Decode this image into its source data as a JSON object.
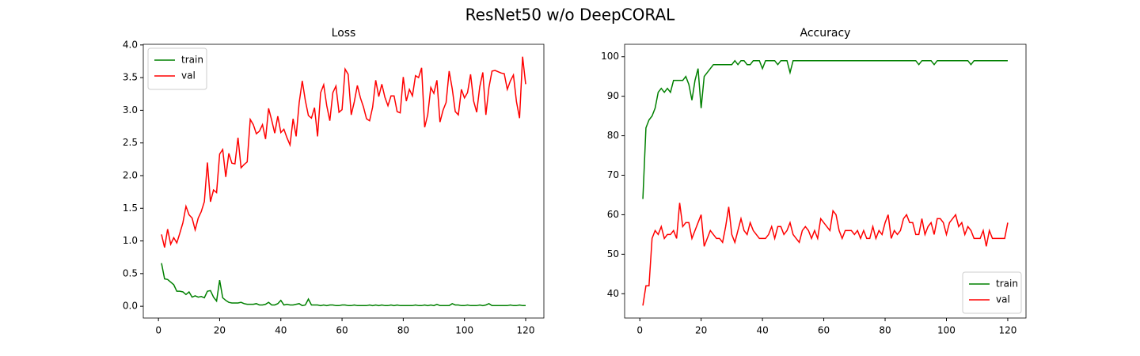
{
  "title": "ResNet50 w/o DeepCORAL",
  "chart_data": [
    {
      "type": "line",
      "title": "Loss",
      "x": [
        1,
        2,
        3,
        4,
        5,
        6,
        7,
        8,
        9,
        10,
        11,
        12,
        13,
        14,
        15,
        16,
        17,
        18,
        19,
        20,
        21,
        22,
        23,
        24,
        25,
        26,
        27,
        28,
        29,
        30,
        31,
        32,
        33,
        34,
        35,
        36,
        37,
        38,
        39,
        40,
        41,
        42,
        43,
        44,
        45,
        46,
        47,
        48,
        49,
        50,
        51,
        52,
        53,
        54,
        55,
        56,
        57,
        58,
        59,
        60,
        61,
        62,
        63,
        64,
        65,
        66,
        67,
        68,
        69,
        70,
        71,
        72,
        73,
        74,
        75,
        76,
        77,
        78,
        79,
        80,
        81,
        82,
        83,
        84,
        85,
        86,
        87,
        88,
        89,
        90,
        91,
        92,
        93,
        94,
        95,
        96,
        97,
        98,
        99,
        100,
        101,
        102,
        103,
        104,
        105,
        106,
        107,
        108,
        109,
        110,
        111,
        112,
        113,
        114,
        115,
        116,
        117,
        118,
        119,
        120
      ],
      "series": [
        {
          "name": "train",
          "color": "#008000",
          "values": [
            0.66,
            0.42,
            0.41,
            0.37,
            0.33,
            0.23,
            0.23,
            0.22,
            0.18,
            0.22,
            0.14,
            0.16,
            0.14,
            0.15,
            0.13,
            0.23,
            0.24,
            0.14,
            0.08,
            0.4,
            0.13,
            0.09,
            0.06,
            0.05,
            0.05,
            0.05,
            0.06,
            0.04,
            0.03,
            0.03,
            0.03,
            0.04,
            0.02,
            0.02,
            0.03,
            0.06,
            0.02,
            0.02,
            0.04,
            0.09,
            0.02,
            0.03,
            0.02,
            0.02,
            0.03,
            0.04,
            0.01,
            0.02,
            0.11,
            0.02,
            0.02,
            0.02,
            0.01,
            0.02,
            0.01,
            0.02,
            0.02,
            0.01,
            0.01,
            0.02,
            0.02,
            0.01,
            0.01,
            0.02,
            0.01,
            0.01,
            0.01,
            0.01,
            0.02,
            0.01,
            0.02,
            0.01,
            0.02,
            0.01,
            0.01,
            0.02,
            0.01,
            0.02,
            0.01,
            0.01,
            0.01,
            0.01,
            0.01,
            0.02,
            0.01,
            0.01,
            0.02,
            0.01,
            0.02,
            0.01,
            0.03,
            0.01,
            0.01,
            0.01,
            0.01,
            0.04,
            0.02,
            0.02,
            0.01,
            0.01,
            0.02,
            0.01,
            0.01,
            0.01,
            0.02,
            0.01,
            0.02,
            0.04,
            0.01,
            0.01,
            0.01,
            0.01,
            0.01,
            0.01,
            0.02,
            0.01,
            0.01,
            0.02,
            0.01,
            0.01
          ]
        },
        {
          "name": "val",
          "color": "#ff0000",
          "values": [
            1.1,
            0.9,
            1.18,
            0.95,
            1.05,
            0.97,
            1.12,
            1.28,
            1.53,
            1.4,
            1.35,
            1.17,
            1.35,
            1.45,
            1.6,
            2.2,
            1.6,
            1.78,
            1.74,
            2.33,
            2.4,
            1.98,
            2.34,
            2.19,
            2.18,
            2.58,
            2.12,
            2.17,
            2.21,
            2.86,
            2.78,
            2.64,
            2.68,
            2.78,
            2.56,
            3.03,
            2.85,
            2.65,
            2.91,
            2.66,
            2.71,
            2.58,
            2.47,
            2.87,
            2.6,
            3.12,
            3.45,
            3.15,
            2.92,
            2.88,
            3.04,
            2.6,
            3.27,
            3.39,
            3.07,
            2.84,
            3.27,
            3.37,
            2.97,
            3.01,
            3.63,
            3.55,
            2.93,
            3.13,
            3.38,
            3.19,
            3.05,
            2.87,
            2.84,
            3.05,
            3.46,
            3.21,
            3.4,
            3.2,
            3.07,
            3.22,
            3.22,
            2.98,
            2.96,
            3.51,
            3.14,
            3.32,
            3.22,
            3.53,
            3.5,
            3.65,
            2.74,
            2.93,
            3.35,
            3.26,
            3.46,
            2.82,
            3.0,
            3.12,
            3.6,
            3.33,
            2.98,
            2.93,
            3.32,
            3.19,
            3.27,
            3.55,
            3.14,
            2.97,
            3.36,
            3.58,
            2.93,
            3.35,
            3.6,
            3.61,
            3.59,
            3.57,
            3.56,
            3.32,
            3.45,
            3.54,
            3.13,
            2.88,
            3.82,
            3.4
          ]
        }
      ],
      "xlim": [
        -4.95,
        125.95
      ],
      "ylim": [
        -0.18,
        4.01
      ],
      "xticks": [
        0,
        20,
        40,
        60,
        80,
        100,
        120
      ],
      "yticks": [
        {
          "value": 0,
          "label": "0.0"
        },
        0.5,
        {
          "value": 1,
          "label": "1.0"
        },
        1.5,
        {
          "value": 2,
          "label": "2.0"
        },
        2.5,
        {
          "value": 3,
          "label": "3.0"
        },
        3.5,
        {
          "value": 4,
          "label": "4.0"
        }
      ],
      "legend": "upper left",
      "grid": false
    },
    {
      "type": "line",
      "title": "Accuracy",
      "x": [
        1,
        2,
        3,
        4,
        5,
        6,
        7,
        8,
        9,
        10,
        11,
        12,
        13,
        14,
        15,
        16,
        17,
        18,
        19,
        20,
        21,
        22,
        23,
        24,
        25,
        26,
        27,
        28,
        29,
        30,
        31,
        32,
        33,
        34,
        35,
        36,
        37,
        38,
        39,
        40,
        41,
        42,
        43,
        44,
        45,
        46,
        47,
        48,
        49,
        50,
        51,
        52,
        53,
        54,
        55,
        56,
        57,
        58,
        59,
        60,
        61,
        62,
        63,
        64,
        65,
        66,
        67,
        68,
        69,
        70,
        71,
        72,
        73,
        74,
        75,
        76,
        77,
        78,
        79,
        80,
        81,
        82,
        83,
        84,
        85,
        86,
        87,
        88,
        89,
        90,
        91,
        92,
        93,
        94,
        95,
        96,
        97,
        98,
        99,
        100,
        101,
        102,
        103,
        104,
        105,
        106,
        107,
        108,
        109,
        110,
        111,
        112,
        113,
        114,
        115,
        116,
        117,
        118,
        119,
        120
      ],
      "series": [
        {
          "name": "train",
          "color": "#008000",
          "values": [
            64,
            82,
            84,
            85,
            87,
            91,
            92,
            91,
            92,
            91,
            94,
            94,
            94,
            94,
            95,
            93,
            89,
            94,
            97,
            87,
            95,
            96,
            97,
            98,
            98,
            98,
            98,
            98,
            98,
            98,
            99,
            98,
            99,
            99,
            98,
            98,
            99,
            99,
            99,
            97,
            99,
            99,
            99,
            99,
            98,
            99,
            99,
            99,
            96,
            99,
            99,
            99,
            99,
            99,
            99,
            99,
            99,
            99,
            99,
            99,
            99,
            99,
            99,
            99,
            99,
            99,
            99,
            99,
            99,
            99,
            99,
            99,
            99,
            99,
            99,
            99,
            99,
            99,
            99,
            99,
            99,
            99,
            99,
            99,
            99,
            99,
            99,
            99,
            99,
            99,
            98,
            99,
            99,
            99,
            99,
            98,
            99,
            99,
            99,
            99,
            99,
            99,
            99,
            99,
            99,
            99,
            99,
            98,
            99,
            99,
            99,
            99,
            99,
            99,
            99,
            99,
            99,
            99,
            99,
            99
          ]
        },
        {
          "name": "val",
          "color": "#ff0000",
          "values": [
            37,
            42,
            42,
            54,
            56,
            55,
            57,
            54,
            55,
            55,
            56,
            54,
            63,
            57,
            58,
            58,
            54,
            56,
            58,
            60,
            52,
            54,
            56,
            55,
            54,
            54,
            53,
            57,
            62,
            55,
            53,
            56,
            59,
            56,
            55,
            58,
            56,
            55,
            54,
            54,
            54,
            55,
            57,
            54,
            57,
            57,
            55,
            56,
            58,
            55,
            54,
            53,
            56,
            57,
            56,
            54,
            56,
            54,
            59,
            58,
            57,
            56,
            61,
            60,
            56,
            54,
            56,
            56,
            56,
            55,
            56,
            54,
            56,
            54,
            54,
            57,
            54,
            56,
            55,
            58,
            60,
            54,
            56,
            55,
            56,
            59,
            60,
            58,
            58,
            55,
            55,
            59,
            55,
            57,
            58,
            55,
            59,
            59,
            58,
            55,
            58,
            59,
            60,
            57,
            58,
            55,
            57,
            56,
            54,
            54,
            54,
            56,
            52,
            56,
            54,
            54,
            54,
            54,
            54,
            58
          ]
        }
      ],
      "xlim": [
        -4.95,
        125.95
      ],
      "ylim": [
        33.85,
        103.15
      ],
      "xticks": [
        0,
        20,
        40,
        60,
        80,
        100,
        120
      ],
      "yticks": [
        40,
        50,
        60,
        70,
        80,
        90,
        100
      ],
      "legend": "lower right",
      "grid": false
    }
  ]
}
